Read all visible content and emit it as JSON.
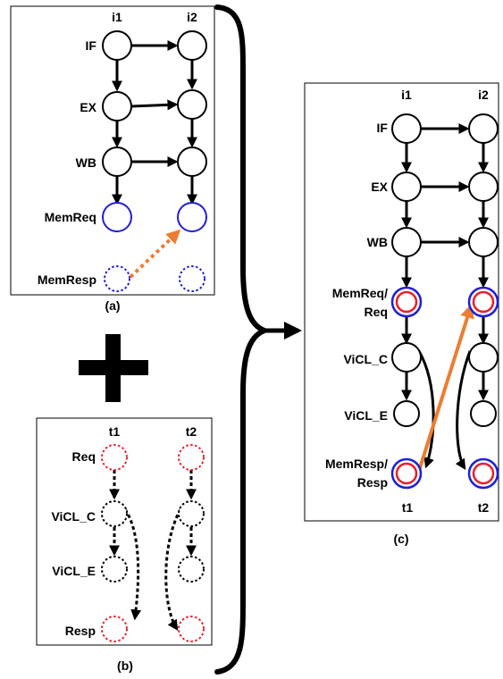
{
  "panel_a": {
    "caption": "(a)",
    "columns": [
      "i1",
      "i2"
    ],
    "rows": [
      "IF",
      "EX",
      "WB",
      "MemReq",
      "MemResp"
    ]
  },
  "panel_b": {
    "caption": "(b)",
    "columns": [
      "t1",
      "t2"
    ],
    "rows": [
      "Req",
      "ViCL_C",
      "ViCL_E",
      "Resp"
    ]
  },
  "panel_c": {
    "caption": "(c)",
    "columns_top": [
      "i1",
      "i2"
    ],
    "columns_bottom": [
      "t1",
      "t2"
    ],
    "rows": [
      "IF",
      "EX",
      "WB",
      "MemReq/",
      "Req",
      "ViCL_C",
      "ViCL_E",
      "MemResp/",
      "Resp"
    ]
  },
  "colors": {
    "black": "#000000",
    "blue": "#1f1fd6",
    "red": "#e8202a",
    "orange": "#ed7d31"
  }
}
